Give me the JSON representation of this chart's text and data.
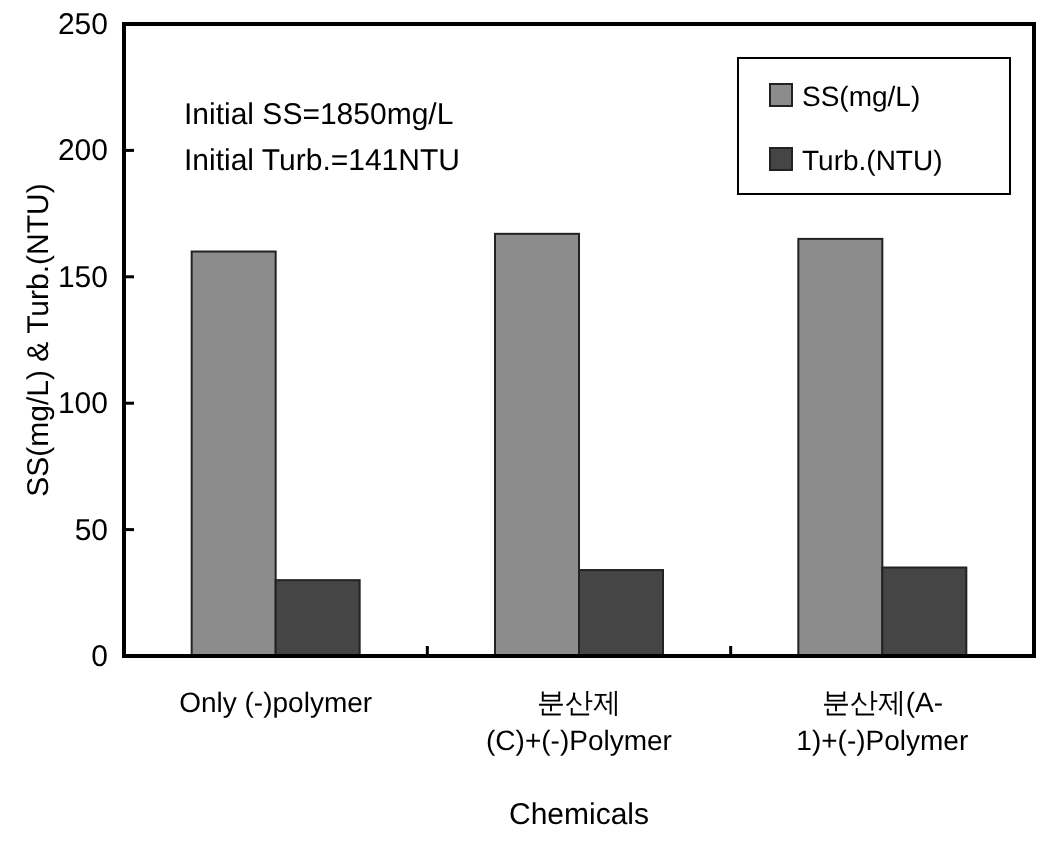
{
  "chart_data": {
    "type": "bar",
    "xlabel": "Chemicals",
    "ylabel": "SS(mg/L) & Turb.(NTU)",
    "categories": [
      "Only (-)polymer",
      "분산제\n(C)+(-)Polymer",
      "분산제(A-\n1)+(-)Polymer"
    ],
    "series": [
      {
        "name": "SS(mg/L)",
        "color": "#8c8c8c",
        "values": [
          160,
          167,
          165
        ]
      },
      {
        "name": "Turb.(NTU)",
        "color": "#454545",
        "values": [
          30,
          34,
          35
        ]
      }
    ],
    "ylim": [
      0,
      250
    ],
    "yticks": [
      0,
      50,
      100,
      150,
      200,
      250
    ],
    "grid": false,
    "legend": "top right",
    "annotations": [
      "Initial SS=1850mg/L",
      "Initial Turb.=141NTU"
    ]
  }
}
